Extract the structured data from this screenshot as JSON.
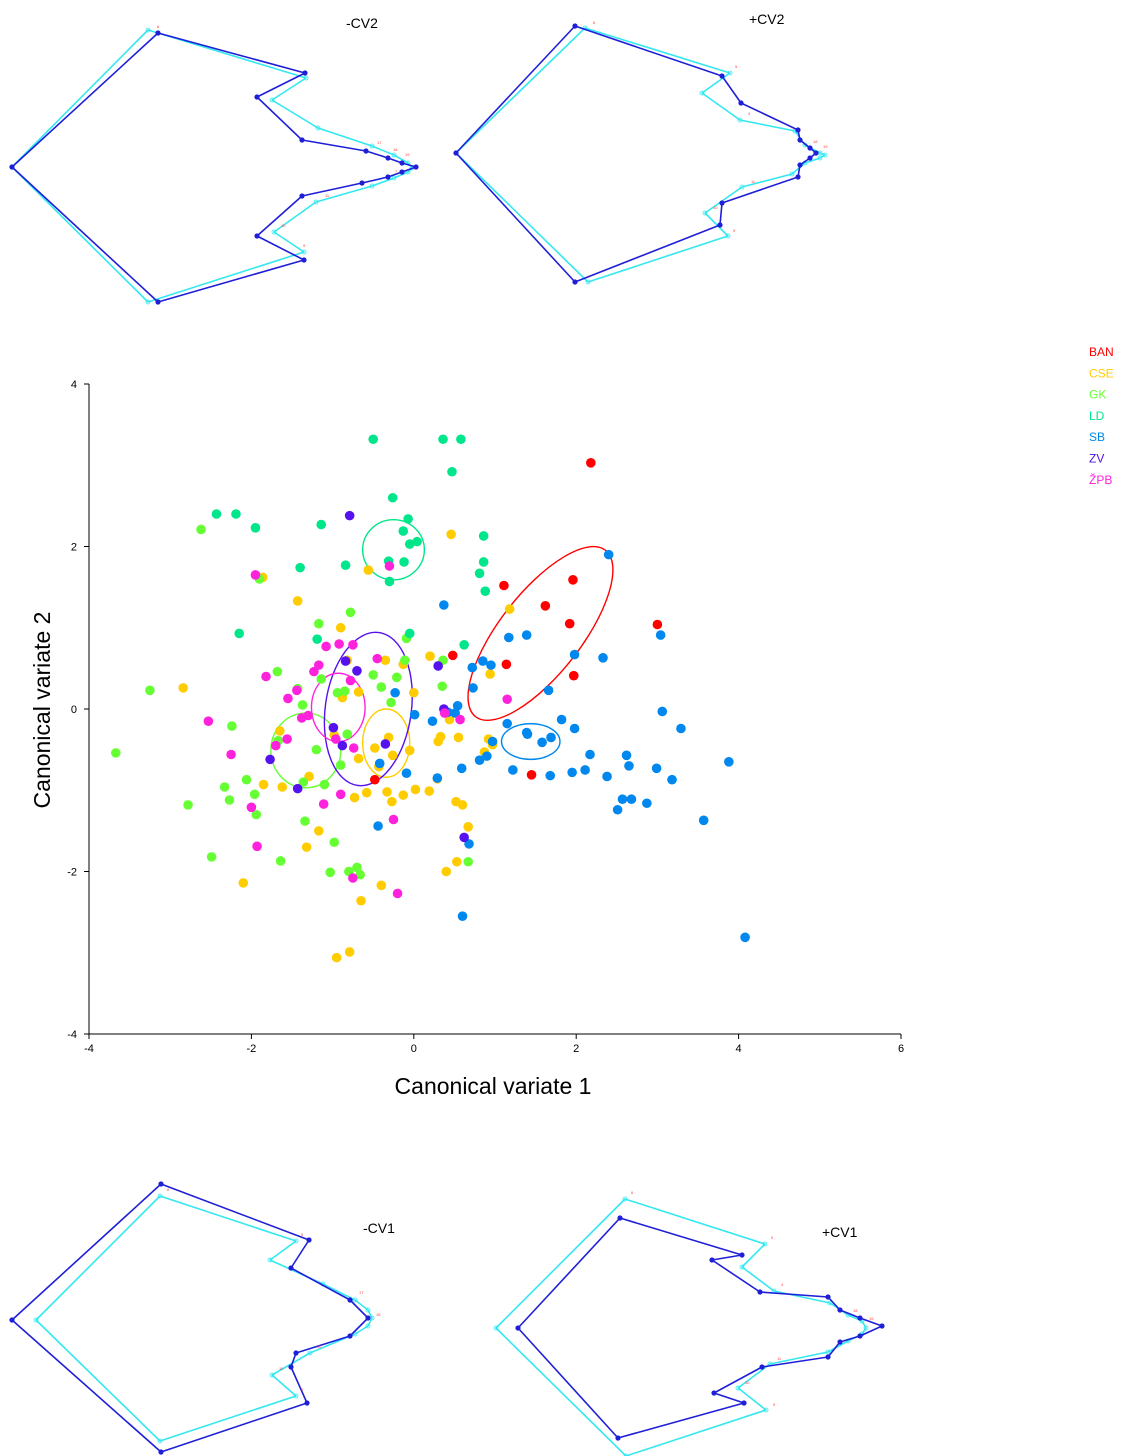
{
  "chart_data": [
    {
      "type": "scatter",
      "xlabel": "Canonical variate 1",
      "ylabel": "Canonical variate 2",
      "xlim": [
        -4,
        6
      ],
      "ylim": [
        -4,
        4
      ],
      "xticks": [
        "-4",
        "-2",
        "0",
        "2",
        "4",
        "6"
      ],
      "yticks": [
        "4",
        "2",
        "0",
        "-2",
        "-4"
      ],
      "legend_position": "right, outside plot",
      "groups": [
        {
          "name": "BAN",
          "color": "#ff0000",
          "points": [
            [
              2.18,
              3.03
            ],
            [
              1.96,
              1.59
            ],
            [
              1.11,
              1.52
            ],
            [
              1.62,
              1.27
            ],
            [
              1.92,
              1.05
            ],
            [
              3.0,
              1.04
            ],
            [
              1.14,
              0.55
            ],
            [
              1.97,
              0.41
            ],
            [
              0.48,
              0.66
            ],
            [
              1.45,
              -0.81
            ],
            [
              -0.48,
              -0.87
            ]
          ],
          "ellipse": {
            "cx": 1.56,
            "cy": 0.93,
            "rx": 1.3,
            "ry": 0.5,
            "angle": 52
          }
        },
        {
          "name": "CSE",
          "color": "#ffcc00",
          "points": [
            [
              -2.84,
              0.26
            ],
            [
              -1.43,
              1.33
            ],
            [
              -1.86,
              1.62
            ],
            [
              -0.56,
              1.71
            ],
            [
              0.46,
              2.15
            ],
            [
              -1.85,
              -0.93
            ],
            [
              -1.65,
              -0.27
            ],
            [
              -1.29,
              -0.83
            ],
            [
              -1.17,
              -1.5
            ],
            [
              -1.32,
              -1.7
            ],
            [
              -2.1,
              -2.14
            ],
            [
              -0.95,
              -3.06
            ],
            [
              -0.79,
              -2.99
            ],
            [
              -0.65,
              -2.36
            ],
            [
              -0.4,
              -2.17
            ],
            [
              0.4,
              -2.0
            ],
            [
              0.53,
              -1.88
            ],
            [
              0.67,
              -1.45
            ],
            [
              0.52,
              -1.14
            ],
            [
              0.6,
              -1.18
            ],
            [
              0.29,
              -0.86
            ],
            [
              0.19,
              -1.01
            ],
            [
              0.02,
              -0.99
            ],
            [
              -0.13,
              -1.06
            ],
            [
              -0.27,
              -1.14
            ],
            [
              -0.33,
              -1.02
            ],
            [
              -0.58,
              -1.03
            ],
            [
              -0.73,
              -1.09
            ],
            [
              -0.43,
              -0.71
            ],
            [
              -0.68,
              -0.61
            ],
            [
              -0.48,
              -0.48
            ],
            [
              -0.26,
              -0.57
            ],
            [
              -0.05,
              -0.51
            ],
            [
              -0.31,
              -0.35
            ],
            [
              0.3,
              -0.4
            ],
            [
              0.55,
              -0.35
            ],
            [
              0.92,
              -0.37
            ],
            [
              0.97,
              -0.44
            ],
            [
              0.87,
              -0.53
            ],
            [
              0.33,
              -0.34
            ],
            [
              0.44,
              -0.13
            ],
            [
              0.0,
              0.2
            ],
            [
              -0.13,
              0.55
            ],
            [
              0.2,
              0.65
            ],
            [
              -0.35,
              0.6
            ],
            [
              -0.82,
              0.6
            ],
            [
              -0.9,
              1.0
            ],
            [
              -0.68,
              0.21
            ],
            [
              -0.88,
              0.14
            ],
            [
              -0.98,
              -0.32
            ],
            [
              0.94,
              0.43
            ],
            [
              1.18,
              1.23
            ],
            [
              -1.62,
              -0.96
            ]
          ],
          "ellipse": {
            "cx": -0.34,
            "cy": -0.42,
            "rx": 0.29,
            "ry": 0.42,
            "angle": 0
          }
        },
        {
          "name": "GK",
          "color": "#66ff33",
          "points": [
            [
              -3.67,
              -0.54
            ],
            [
              -3.25,
              0.23
            ],
            [
              -2.78,
              -1.18
            ],
            [
              -2.49,
              -1.82
            ],
            [
              -2.33,
              -0.96
            ],
            [
              -2.27,
              -1.12
            ],
            [
              -2.24,
              -0.21
            ],
            [
              -2.06,
              -0.87
            ],
            [
              -1.96,
              -1.05
            ],
            [
              -1.94,
              -1.3
            ],
            [
              -1.68,
              0.46
            ],
            [
              -1.67,
              -0.39
            ],
            [
              -1.64,
              -1.87
            ],
            [
              -1.43,
              0.25
            ],
            [
              -1.37,
              0.05
            ],
            [
              -1.36,
              -0.9
            ],
            [
              -1.34,
              -1.38
            ],
            [
              -1.2,
              -0.5
            ],
            [
              -1.17,
              1.05
            ],
            [
              -1.14,
              0.37
            ],
            [
              -1.1,
              -0.93
            ],
            [
              -1.03,
              -2.01
            ],
            [
              -0.98,
              -1.64
            ],
            [
              -0.94,
              0.2
            ],
            [
              -0.9,
              -0.69
            ],
            [
              -0.85,
              0.22
            ],
            [
              -0.82,
              -0.31
            ],
            [
              -0.8,
              -2.0
            ],
            [
              -0.78,
              1.19
            ],
            [
              -0.7,
              -1.95
            ],
            [
              -0.66,
              -2.04
            ],
            [
              -0.5,
              0.42
            ],
            [
              -0.4,
              0.27
            ],
            [
              -0.28,
              0.08
            ],
            [
              -0.21,
              0.39
            ],
            [
              -0.11,
              0.6
            ],
            [
              -0.09,
              0.87
            ],
            [
              0.36,
              0.6
            ],
            [
              0.35,
              0.28
            ],
            [
              0.67,
              -1.88
            ],
            [
              -2.62,
              2.21
            ],
            [
              -1.9,
              1.6
            ]
          ],
          "ellipse": {
            "cx": -1.33,
            "cy": -0.51,
            "rx": 0.43,
            "ry": 0.46,
            "angle": 0
          }
        },
        {
          "name": "LD",
          "color": "#00e68a",
          "points": [
            [
              -0.5,
              3.32
            ],
            [
              0.36,
              3.32
            ],
            [
              0.58,
              3.32
            ],
            [
              0.47,
              2.92
            ],
            [
              -0.26,
              2.6
            ],
            [
              -2.43,
              2.4
            ],
            [
              -2.19,
              2.4
            ],
            [
              -1.14,
              2.27
            ],
            [
              -0.07,
              2.34
            ],
            [
              -0.13,
              2.19
            ],
            [
              0.86,
              2.13
            ],
            [
              -0.05,
              2.03
            ],
            [
              0.04,
              2.06
            ],
            [
              -1.95,
              2.23
            ],
            [
              -0.12,
              1.81
            ],
            [
              -0.31,
              1.82
            ],
            [
              -0.84,
              1.77
            ],
            [
              -1.4,
              1.74
            ],
            [
              -0.3,
              1.57
            ],
            [
              0.86,
              1.81
            ],
            [
              0.81,
              1.67
            ],
            [
              0.88,
              1.45
            ],
            [
              0.62,
              0.79
            ],
            [
              -0.05,
              0.93
            ],
            [
              -1.19,
              0.86
            ],
            [
              -2.15,
              0.93
            ]
          ],
          "ellipse": {
            "cx": -0.25,
            "cy": 1.96,
            "rx": 0.38,
            "ry": 0.37,
            "angle": 0
          }
        },
        {
          "name": "SB",
          "color": "#0088ee",
          "points": [
            [
              2.4,
              1.9
            ],
            [
              0.37,
              1.28
            ],
            [
              1.39,
              0.91
            ],
            [
              3.04,
              0.91
            ],
            [
              1.98,
              0.67
            ],
            [
              2.33,
              0.63
            ],
            [
              0.72,
              0.51
            ],
            [
              0.85,
              0.59
            ],
            [
              0.95,
              0.54
            ],
            [
              1.17,
              0.88
            ],
            [
              1.66,
              0.23
            ],
            [
              0.73,
              0.26
            ],
            [
              0.54,
              0.04
            ],
            [
              0.42,
              -0.04
            ],
            [
              0.51,
              -0.05
            ],
            [
              0.23,
              -0.15
            ],
            [
              0.01,
              -0.07
            ],
            [
              -0.23,
              0.2
            ],
            [
              1.15,
              -0.18
            ],
            [
              1.4,
              -0.31
            ],
            [
              1.58,
              -0.41
            ],
            [
              1.69,
              -0.35
            ],
            [
              1.82,
              -0.13
            ],
            [
              1.98,
              -0.24
            ],
            [
              2.17,
              -0.56
            ],
            [
              2.62,
              -0.57
            ],
            [
              2.65,
              -0.7
            ],
            [
              3.06,
              -0.03
            ],
            [
              3.29,
              -0.24
            ],
            [
              2.38,
              -0.83
            ],
            [
              2.51,
              -1.24
            ],
            [
              2.57,
              -1.11
            ],
            [
              2.68,
              -1.11
            ],
            [
              2.87,
              -1.16
            ],
            [
              2.99,
              -0.73
            ],
            [
              3.18,
              -0.87
            ],
            [
              3.57,
              -1.37
            ],
            [
              3.88,
              -0.65
            ],
            [
              4.08,
              -2.81
            ],
            [
              0.6,
              -2.55
            ],
            [
              0.68,
              -1.66
            ],
            [
              -0.44,
              -1.44
            ],
            [
              -0.09,
              -0.79
            ],
            [
              0.29,
              -0.85
            ],
            [
              0.59,
              -0.73
            ],
            [
              0.9,
              -0.58
            ],
            [
              1.22,
              -0.75
            ],
            [
              1.39,
              -0.29
            ],
            [
              1.68,
              -0.82
            ],
            [
              1.95,
              -0.78
            ],
            [
              2.11,
              -0.75
            ],
            [
              -0.42,
              -0.67
            ],
            [
              0.97,
              -0.4
            ],
            [
              0.81,
              -0.63
            ]
          ],
          "ellipse": {
            "cx": 1.44,
            "cy": -0.4,
            "rx": 0.36,
            "ry": 0.22,
            "angle": 0
          }
        },
        {
          "name": "ZV",
          "color": "#5511ee",
          "points": [
            [
              -0.79,
              2.38
            ],
            [
              0.3,
              0.53
            ],
            [
              -0.7,
              0.47
            ],
            [
              -0.84,
              0.59
            ],
            [
              -0.35,
              -0.43
            ],
            [
              -0.88,
              -0.45
            ],
            [
              -1.77,
              -0.62
            ],
            [
              -1.43,
              -0.98
            ],
            [
              0.62,
              -1.58
            ],
            [
              0.37,
              0.0
            ],
            [
              -0.99,
              -0.23
            ]
          ],
          "ellipse": {
            "cx": -0.56,
            "cy": 0.0,
            "rx": 0.53,
            "ry": 0.95,
            "angle": -8
          }
        },
        {
          "name": "ŽPB",
          "color": "#ff22dd",
          "points": [
            [
              -1.95,
              1.65
            ],
            [
              -0.3,
              1.76
            ],
            [
              -1.82,
              0.4
            ],
            [
              -1.55,
              0.13
            ],
            [
              -1.44,
              0.23
            ],
            [
              -1.23,
              0.46
            ],
            [
              -1.17,
              0.54
            ],
            [
              -1.08,
              0.77
            ],
            [
              -0.92,
              0.8
            ],
            [
              -0.75,
              0.79
            ],
            [
              -0.45,
              0.62
            ],
            [
              -0.78,
              0.35
            ],
            [
              -1.56,
              -0.37
            ],
            [
              -1.7,
              -0.45
            ],
            [
              -2.53,
              -0.15
            ],
            [
              -2.25,
              -0.56
            ],
            [
              -2.0,
              -1.21
            ],
            [
              -1.93,
              -1.69
            ],
            [
              -1.38,
              -0.11
            ],
            [
              -1.3,
              -0.08
            ],
            [
              -0.96,
              -0.37
            ],
            [
              -0.74,
              -0.48
            ],
            [
              -1.11,
              -1.17
            ],
            [
              -0.9,
              -1.05
            ],
            [
              -0.75,
              -2.08
            ],
            [
              -0.2,
              -2.27
            ],
            [
              -0.25,
              -1.36
            ],
            [
              0.38,
              -0.05
            ],
            [
              0.57,
              -0.13
            ],
            [
              1.15,
              0.12
            ]
          ],
          "ellipse": {
            "cx": -0.93,
            "cy": 0.02,
            "rx": 0.33,
            "ry": 0.42,
            "angle": 0
          }
        }
      ]
    },
    {
      "type": "diagram",
      "panels": [
        {
          "title": "-CV2"
        },
        {
          "title": "+CV2"
        },
        {
          "title": "-CV1"
        },
        {
          "title": "+CV1"
        }
      ]
    }
  ]
}
